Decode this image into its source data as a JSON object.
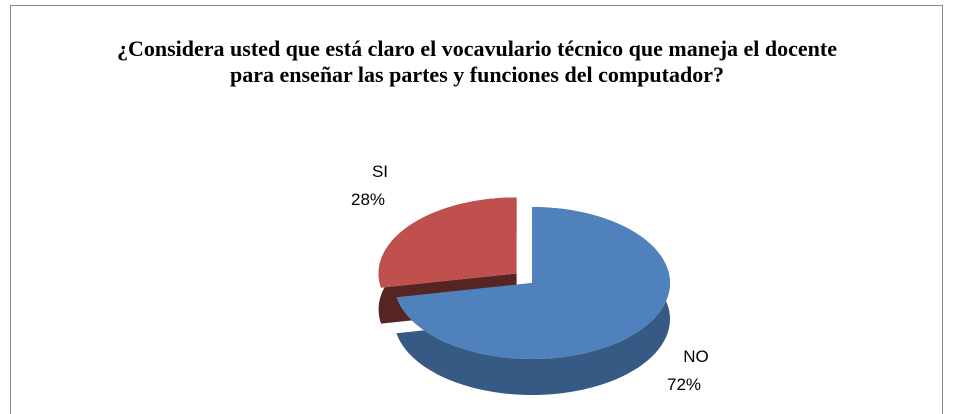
{
  "chart_data": {
    "type": "pie3d",
    "title": "¿Considera usted que está claro el vocavulario técnico que maneja el docente para enseñar las partes y funciones del computador?",
    "categories": [
      "NO",
      "SI"
    ],
    "values": [
      72,
      28
    ],
    "value_labels": [
      "72%",
      "28%"
    ],
    "colors": [
      "#4f81bd",
      "#c0504d"
    ],
    "explode": [
      false,
      true
    ]
  }
}
